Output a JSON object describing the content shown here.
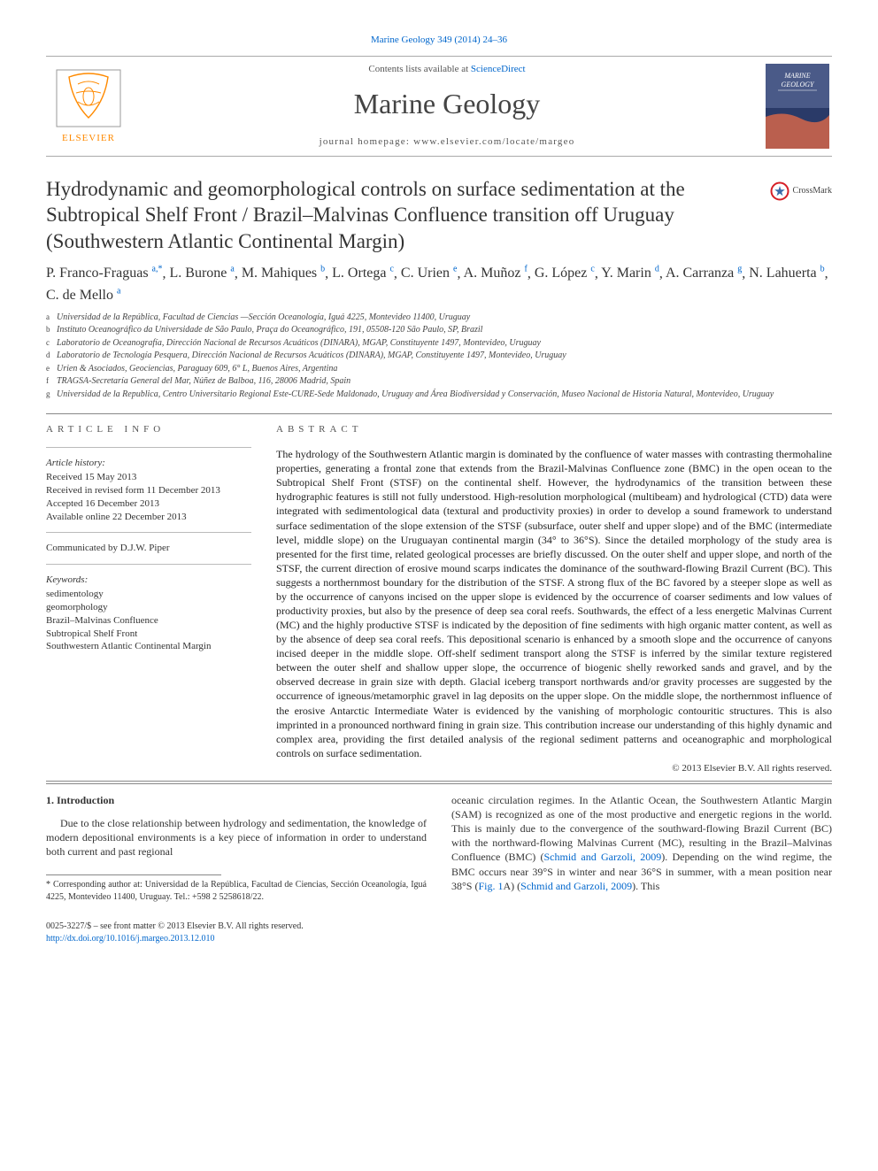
{
  "citation": "Marine Geology 349 (2014) 24–36",
  "banner": {
    "contents_line_prefix": "Contents lists available at ",
    "contents_link": "ScienceDirect",
    "journal_name": "Marine Geology",
    "homepage_prefix": "journal homepage: ",
    "homepage_url": "www.elsevier.com/locate/margeo",
    "cover_label": "MARINE GEOLOGY"
  },
  "title": "Hydrodynamic and geomorphological controls on surface sedimentation at the Subtropical Shelf Front / Brazil–Malvinas Confluence transition off Uruguay (Southwestern Atlantic Continental Margin)",
  "crossmark": "CrossMark",
  "authors": [
    {
      "name": "P. Franco-Fraguas",
      "sup": "a,*"
    },
    {
      "name": "L. Burone",
      "sup": "a"
    },
    {
      "name": "M. Mahiques",
      "sup": "b"
    },
    {
      "name": "L. Ortega",
      "sup": "c"
    },
    {
      "name": "C. Urien",
      "sup": "e"
    },
    {
      "name": "A. Muñoz",
      "sup": "f"
    },
    {
      "name": "G. López",
      "sup": "c"
    },
    {
      "name": "Y. Marin",
      "sup": "d"
    },
    {
      "name": "A. Carranza",
      "sup": "g"
    },
    {
      "name": "N. Lahuerta",
      "sup": "b"
    },
    {
      "name": "C. de Mello",
      "sup": "a"
    }
  ],
  "affiliations": [
    {
      "sup": "a",
      "text": "Universidad de la República, Facultad de Ciencias —Sección Oceanología, Iguá 4225, Montevideo 11400, Uruguay"
    },
    {
      "sup": "b",
      "text": "Instituto Oceanográfico da Universidade de São Paulo, Praça do Oceanográfico, 191, 05508-120 São Paulo, SP, Brazil"
    },
    {
      "sup": "c",
      "text": "Laboratorio de Oceanografía, Dirección Nacional de Recursos Acuáticos (DINARA), MGAP, Constituyente 1497, Montevideo, Uruguay"
    },
    {
      "sup": "d",
      "text": "Laboratorio de Tecnología Pesquera, Dirección Nacional de Recursos Acuáticos (DINARA), MGAP, Constituyente 1497, Montevideo, Uruguay"
    },
    {
      "sup": "e",
      "text": "Urien & Asociados, Geociencias, Paraguay 609, 6° L, Buenos Aires, Argentina"
    },
    {
      "sup": "f",
      "text": "TRAGSA-Secretaría General del Mar, Núñez de Balboa, 116, 28006 Madrid, Spain"
    },
    {
      "sup": "g",
      "text": "Universidad de la Republica, Centro Universitario Regional Este-CURE-Sede Maldonado, Uruguay and Área Biodiversidad y Conservación, Museo Nacional de Historia Natural, Montevideo, Uruguay"
    }
  ],
  "article_info": {
    "heading": "article info",
    "history_label": "Article history:",
    "history": [
      "Received 15 May 2013",
      "Received in revised form 11 December 2013",
      "Accepted 16 December 2013",
      "Available online 22 December 2013"
    ],
    "communicated": "Communicated by D.J.W. Piper",
    "keywords_label": "Keywords:",
    "keywords": [
      "sedimentology",
      "geomorphology",
      "Brazil–Malvinas Confluence",
      "Subtropical Shelf Front",
      "Southwestern Atlantic Continental Margin"
    ]
  },
  "abstract": {
    "heading": "abstract",
    "text": "The hydrology of the Southwestern Atlantic margin is dominated by the confluence of water masses with contrasting thermohaline properties, generating a frontal zone that extends from the Brazil-Malvinas Confluence zone (BMC) in the open ocean to the Subtropical Shelf Front (STSF) on the continental shelf. However, the hydrodynamics of the transition between these hydrographic features is still not fully understood. High-resolution morphological (multibeam) and hydrological (CTD) data were integrated with sedimentological data (textural and productivity proxies) in order to develop a sound framework to understand surface sedimentation of the slope extension of the STSF (subsurface, outer shelf and upper slope) and of the BMC (intermediate level, middle slope) on the Uruguayan continental margin (34° to 36°S). Since the detailed morphology of the study area is presented for the first time, related geological processes are briefly discussed. On the outer shelf and upper slope, and north of the STSF, the current direction of erosive mound scarps indicates the dominance of the southward-flowing Brazil Current (BC). This suggests a northernmost boundary for the distribution of the STSF. A strong flux of the BC favored by a steeper slope as well as by the occurrence of canyons incised on the upper slope is evidenced by the occurrence of coarser sediments and low values of productivity proxies, but also by the presence of deep sea coral reefs. Southwards, the effect of a less energetic Malvinas Current (MC) and the highly productive STSF is indicated by the deposition of fine sediments with high organic matter content, as well as by the absence of deep sea coral reefs. This depositional scenario is enhanced by a smooth slope and the occurrence of canyons incised deeper in the middle slope. Off-shelf sediment transport along the STSF is inferred by the similar texture registered between the outer shelf and shallow upper slope, the occurrence of biogenic shelly reworked sands and gravel, and by the observed decrease in grain size with depth. Glacial iceberg transport northwards and/or gravity processes are suggested by the occurrence of igneous/metamorphic gravel in lag deposits on the upper slope. On the middle slope, the northernmost influence of the erosive Antarctic Intermediate Water is evidenced by the vanishing of morphologic contouritic structures. This is also imprinted in a pronounced northward fining in grain size. This contribution increase our understanding of this highly dynamic and complex area, providing the first detailed analysis of the regional sediment patterns and oceanographic and morphological controls on surface sedimentation.",
    "copyright": "© 2013 Elsevier B.V. All rights reserved."
  },
  "intro": {
    "heading": "1. Introduction",
    "para_left": "Due to the close relationship between hydrology and sedimentation, the knowledge of modern depositional environments is a key piece of information in order to understand both current and past regional",
    "para_right_1": "oceanic circulation regimes. In the Atlantic Ocean, the Southwestern Atlantic Margin (SAM) is recognized as one of the most productive and energetic regions in the world. This is mainly due to the convergence of the southward-flowing Brazil Current (BC) with the northward-flowing Malvinas Current (MC), resulting in the Brazil–Malvinas Confluence (BMC) (",
    "ref1": "Schmid and Garzoli, 2009",
    "para_right_2": "). Depending on the wind regime, the BMC occurs near 39°S in winter and near 36°S in summer, with a mean position near 38°S (",
    "fig_link": "Fig. 1",
    "para_right_3": "A) (",
    "ref2": "Schmid and Garzoli, 2009",
    "para_right_4": "). This"
  },
  "corresponding": {
    "marker": "*",
    "text": "Corresponding author at: Universidad de la República, Facultad de Ciencias, Sección Oceanología, Iguá 4225, Montevideo 11400, Uruguay. Tel.: +598 2 5258618/22."
  },
  "footer": {
    "line1": "0025-3227/$ – see front matter © 2013 Elsevier B.V. All rights reserved.",
    "doi": "http://dx.doi.org/10.1016/j.margeo.2013.12.010"
  },
  "colors": {
    "link": "#0066cc",
    "rule": "#888888",
    "text": "#333333",
    "elsevier_orange": "#ff8a00",
    "elsevier_grey": "#9a9a9a",
    "cover_bg": "#4a5a88",
    "cover_stripe": "#d4664a",
    "crossmark_ring": "#d61f26"
  }
}
